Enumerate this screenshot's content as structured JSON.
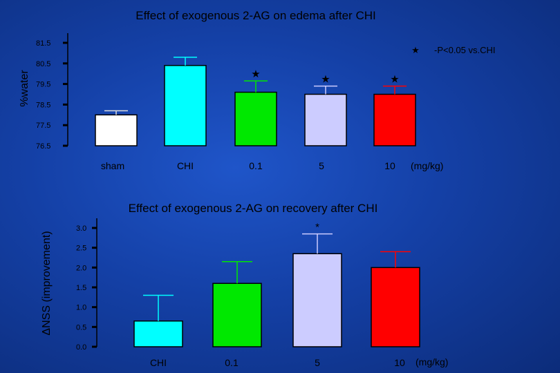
{
  "chart_data": [
    {
      "type": "bar",
      "title": "Effect of exogenous 2-AG on edema after CHI",
      "ylabel": "%water",
      "unit_label": "(mg/kg)",
      "categories": [
        "sham",
        "CHI",
        "0.1",
        "5",
        "10"
      ],
      "values": [
        78.0,
        80.4,
        79.1,
        79.0,
        79.0
      ],
      "errors": [
        0.2,
        0.4,
        0.55,
        0.4,
        0.4
      ],
      "colors": [
        "#ffffff",
        "#00ffff",
        "#00e800",
        "#ccccff",
        "#ff0000"
      ],
      "significance": [
        "",
        "",
        "★",
        "★",
        "★"
      ],
      "ylim": [
        76.5,
        81.5
      ],
      "yticks": [
        "76.5",
        "77.5",
        "78.5",
        "79.5",
        "80.5",
        "81.5"
      ],
      "legend_symbol": "★",
      "legend_text": "-P<0.05 vs.CHI",
      "legend_position": "top-right",
      "grid": false
    },
    {
      "type": "bar",
      "title": "Effect of exogenous 2-AG on recovery after CHI",
      "ylabel": "ΔNSS (improvement)",
      "unit_label": "(mg/kg)",
      "categories": [
        "CHI",
        "0.1",
        "5",
        "10"
      ],
      "values": [
        0.65,
        1.6,
        2.35,
        2.0
      ],
      "errors": [
        0.65,
        0.55,
        0.5,
        0.4
      ],
      "colors": [
        "#00ffff",
        "#00e800",
        "#ccccff",
        "#ff0000"
      ],
      "significance": [
        "",
        "",
        "*",
        ""
      ],
      "ylim": [
        0.0,
        3.0
      ],
      "yticks": [
        "0.0",
        "0.5",
        "1.0",
        "1.5",
        "2.0",
        "2.5",
        "3.0"
      ],
      "grid": false
    }
  ]
}
